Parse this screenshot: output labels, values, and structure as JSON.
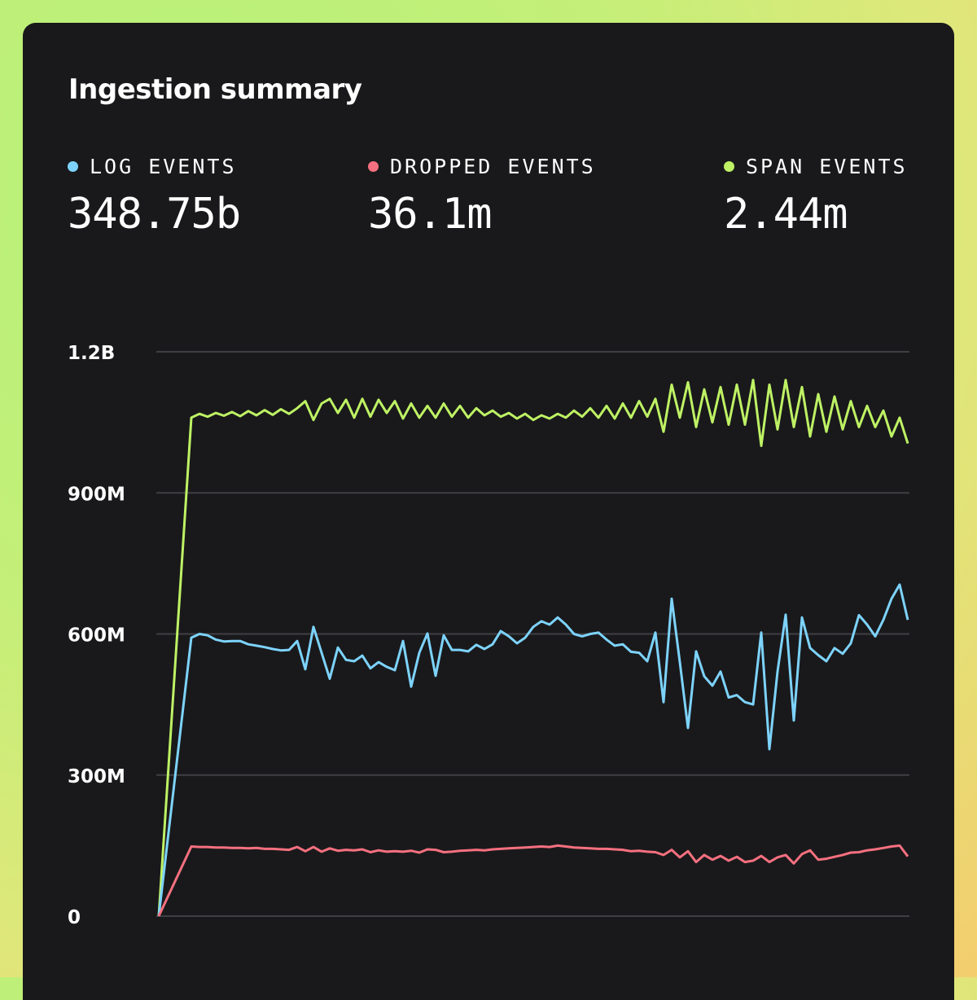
{
  "title": "Ingestion summary",
  "stats": [
    {
      "label": "LOG EVENTS",
      "value": "348.75b",
      "color": "#7dd3fc"
    },
    {
      "label": "DROPPED EVENTS",
      "value": "36.1m",
      "color": "#f6707f"
    },
    {
      "label": "SPAN EVENTS",
      "value": "2.44m",
      "color": "#bef264"
    }
  ],
  "chart_data": {
    "type": "line",
    "title": "",
    "xlabel": "",
    "ylabel": "",
    "ylim": [
      0,
      1200
    ],
    "y_unit": "M",
    "yticks": [
      {
        "value": 0,
        "label": "0"
      },
      {
        "value": 300,
        "label": "300M"
      },
      {
        "value": 600,
        "label": "600M"
      },
      {
        "value": 900,
        "label": "900M"
      },
      {
        "value": 1200,
        "label": "1.2B"
      }
    ],
    "grid": true,
    "x_first": 0,
    "x_start": 4,
    "x_end": 92,
    "series": [
      {
        "name": "SPAN EVENTS",
        "color": "#bef264",
        "values": [
          0,
          1060,
          1068,
          1062,
          1070,
          1064,
          1072,
          1063,
          1074,
          1065,
          1076,
          1066,
          1078,
          1068,
          1080,
          1095,
          1055,
          1090,
          1100,
          1070,
          1098,
          1060,
          1100,
          1062,
          1098,
          1070,
          1095,
          1058,
          1090,
          1060,
          1085,
          1060,
          1090,
          1062,
          1085,
          1060,
          1080,
          1065,
          1075,
          1062,
          1070,
          1058,
          1068,
          1055,
          1065,
          1058,
          1068,
          1060,
          1075,
          1062,
          1080,
          1060,
          1085,
          1058,
          1090,
          1060,
          1095,
          1062,
          1100,
          1030,
          1130,
          1060,
          1135,
          1040,
          1120,
          1050,
          1125,
          1045,
          1130,
          1045,
          1140,
          1000,
          1130,
          1035,
          1140,
          1040,
          1125,
          1020,
          1110,
          1030,
          1105,
          1035,
          1095,
          1040,
          1085,
          1040,
          1075,
          1020,
          1060,
          1005
        ]
      },
      {
        "name": "LOG EVENTS",
        "color": "#7dd3fc",
        "values": [
          0,
          592,
          600,
          597,
          588,
          584,
          585,
          585,
          578,
          575,
          572,
          568,
          565,
          566,
          585,
          525,
          615,
          560,
          505,
          571,
          545,
          542,
          554,
          527,
          540,
          530,
          523,
          585,
          488,
          560,
          601,
          511,
          597,
          566,
          566,
          563,
          577,
          568,
          578,
          606,
          595,
          580,
          592,
          615,
          627,
          620,
          635,
          620,
          600,
          595,
          600,
          603,
          588,
          575,
          578,
          562,
          560,
          542,
          603,
          455,
          675,
          540,
          400,
          563,
          510,
          490,
          520,
          465,
          470,
          455,
          450,
          603,
          355,
          520,
          641,
          416,
          635,
          570,
          555,
          542,
          570,
          558,
          580,
          640,
          620,
          595,
          630,
          675,
          705,
          630
        ]
      },
      {
        "name": "DROPPED EVENTS",
        "color": "#f6707f",
        "values": [
          0,
          148,
          147,
          147,
          146,
          146,
          145,
          145,
          144,
          145,
          143,
          143,
          142,
          141,
          147,
          138,
          147,
          137,
          144,
          139,
          141,
          140,
          142,
          136,
          140,
          137,
          138,
          137,
          139,
          135,
          142,
          141,
          136,
          137,
          139,
          140,
          141,
          140,
          142,
          143,
          144,
          145,
          146,
          147,
          148,
          147,
          150,
          148,
          146,
          145,
          144,
          143,
          143,
          142,
          141,
          138,
          139,
          137,
          136,
          130,
          141,
          125,
          138,
          115,
          130,
          120,
          128,
          118,
          126,
          115,
          118,
          128,
          115,
          125,
          130,
          112,
          132,
          140,
          120,
          122,
          126,
          130,
          135,
          136,
          140,
          142,
          145,
          148,
          150,
          127
        ]
      }
    ]
  }
}
